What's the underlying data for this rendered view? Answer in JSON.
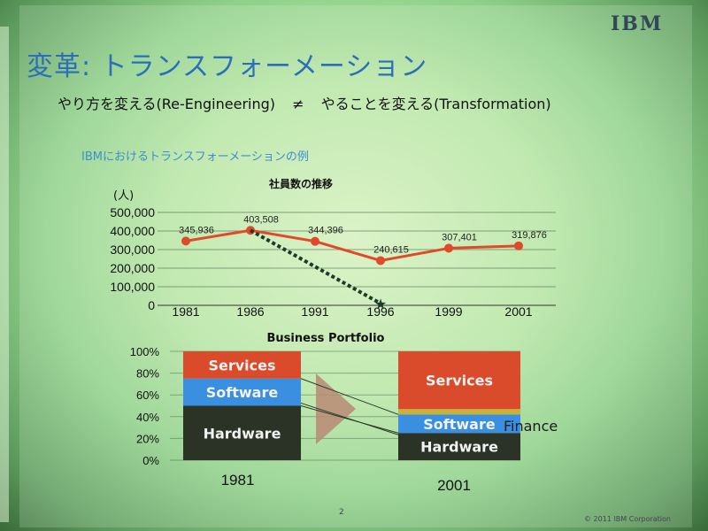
{
  "slide": {
    "logo": "IBM",
    "title": "変革: トランスフォーメーション",
    "subtitle_left": "やり方を変える(Re-Engineering)",
    "subtitle_symbol": "≠",
    "subtitle_right": "やることを変える(Transformation)",
    "section_label": "IBMにおけるトランスフォーメーションの例",
    "page_number": "2",
    "copyright": "© 2011 IBM Corporation"
  },
  "chart_data": [
    {
      "type": "line",
      "title": "社員数の推移",
      "ylabel": "(人)",
      "y_tick_labels": [
        "500,000",
        "400,000",
        "300,000",
        "200,000",
        "100,000",
        "0"
      ],
      "ylim": [
        0,
        500000
      ],
      "categories": [
        "1981",
        "1986",
        "1991",
        "1996",
        "1999",
        "2001"
      ],
      "series": [
        {
          "values": [
            345936,
            403508,
            344396,
            240615,
            307401,
            319876
          ],
          "labels": [
            "345,936",
            "403,508",
            "344,396",
            "240,615",
            "307,401",
            "319,876"
          ],
          "color": "#e04a2a"
        }
      ],
      "annotation": {
        "type": "dotted-trend-arrow",
        "from_category": "1986",
        "from_value": 403508,
        "to_category": "1996",
        "to_value": 10000,
        "marker": "★",
        "color": "#1d3a2a"
      },
      "grid": true
    },
    {
      "type": "bar",
      "title": "Business Portfolio",
      "y_tick_labels": [
        "100%",
        "80%",
        "60%",
        "40%",
        "20%",
        "0%"
      ],
      "ylim": [
        0,
        100
      ],
      "categories": [
        "1981",
        "2001"
      ],
      "series": [
        {
          "name": "Hardware",
          "values": [
            50,
            25
          ],
          "color": "#2b3327"
        },
        {
          "name": "Software",
          "values": [
            25,
            17
          ],
          "color": "#3a8fe0"
        },
        {
          "name": "Finance",
          "values": [
            0,
            5
          ],
          "color": "#c9b23a"
        },
        {
          "name": "Services",
          "values": [
            25,
            53
          ],
          "color": "#d94b2a"
        }
      ],
      "grid": true
    }
  ]
}
